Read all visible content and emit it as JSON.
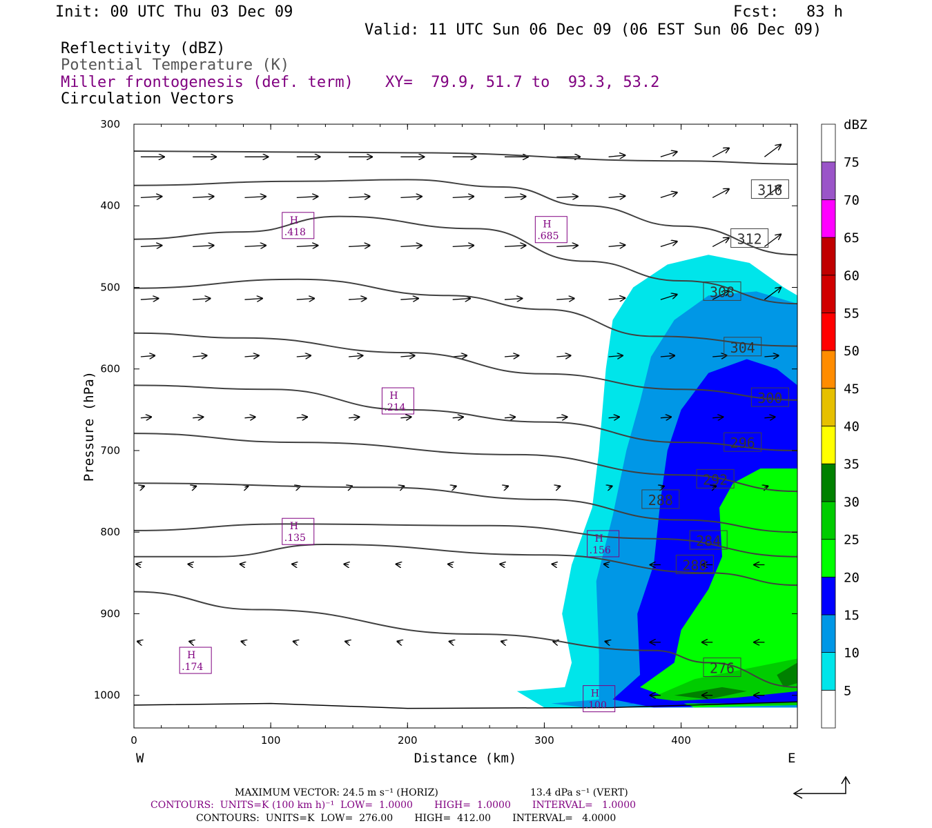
{
  "header": {
    "init": "Init: 00 UTC Thu 03 Dec 09",
    "fcst": "Fcst:   83 h",
    "valid": "Valid: 11 UTC Sun 06 Dec 09 (06 EST Sun 06 Dec 09)"
  },
  "legend": {
    "fields": [
      {
        "label": "Reflectivity (dBZ)",
        "color": "#000000"
      },
      {
        "label": "Potential Temperature (K)",
        "color": "#555555"
      },
      {
        "label": "Miller frontogenesis (def. term)",
        "color": "#800080"
      },
      {
        "label": "Circulation Vectors",
        "color": "#000000"
      }
    ],
    "xy": "XY=  79.9, 51.7 to  93.3, 53.2"
  },
  "footer": {
    "line1a": "MAXIMUM VECTOR:  24.5 m s⁻¹ (HORIZ)",
    "line1b": "13.4 dPa s⁻¹ (VERT)",
    "line2": "CONTOURS:  UNITS=K (100 km h)⁻¹  LOW=  1.0000       HIGH=  1.0000       INTERVAL=   1.0000",
    "line3": "CONTOURS:  UNITS=K  LOW=  276.00       HIGH=  412.00       INTERVAL=   4.0000"
  },
  "chart_data": {
    "type": "cross-section",
    "xlabel": "Distance (km)",
    "ylabel": "Pressure (hPa)",
    "xlim": [
      0,
      485
    ],
    "ylim": [
      1040,
      300
    ],
    "x_ticks": [
      "0",
      "100",
      "200",
      "300",
      "400"
    ],
    "y_ticks": [
      "300",
      "400",
      "500",
      "600",
      "700",
      "800",
      "900",
      "1000"
    ],
    "x_end_labels": {
      "left": "W",
      "right": "E"
    },
    "colorbar": {
      "unit": "dBZ",
      "levels": [
        "5",
        "10",
        "15",
        "20",
        "25",
        "30",
        "35",
        "40",
        "45",
        "50",
        "55",
        "60",
        "65",
        "70",
        "75"
      ],
      "colors": [
        "#ffffff",
        "#00e5ea",
        "#0097e6",
        "#0000ff",
        "#00ff00",
        "#00cc00",
        "#008000",
        "#ffff00",
        "#e6c000",
        "#ff8c00",
        "#ff0000",
        "#d00000",
        "#c00000",
        "#ff00ff",
        "#9a55c8",
        "#ffffff"
      ]
    },
    "theta_contours": [
      {
        "label": "316",
        "line": [
          [
            0,
            333
          ],
          [
            200,
            335
          ],
          [
            400,
            345
          ],
          [
            485,
            349
          ]
        ],
        "lx": 465,
        "ly": 380
      },
      {
        "label": "312",
        "line": [
          [
            0,
            375
          ],
          [
            120,
            370
          ],
          [
            200,
            368
          ],
          [
            270,
            377
          ],
          [
            330,
            400
          ],
          [
            400,
            425
          ],
          [
            485,
            460
          ]
        ],
        "lx": 450,
        "ly": 440
      },
      {
        "label": "308",
        "line": [
          [
            0,
            441
          ],
          [
            80,
            432
          ],
          [
            150,
            413
          ],
          [
            250,
            428
          ],
          [
            330,
            468
          ],
          [
            400,
            492
          ],
          [
            485,
            520
          ]
        ],
        "lx": 430,
        "ly": 505
      },
      {
        "label": "304",
        "line": [
          [
            0,
            501
          ],
          [
            120,
            490
          ],
          [
            230,
            510
          ],
          [
            300,
            527
          ],
          [
            380,
            560
          ],
          [
            485,
            572
          ]
        ],
        "lx": 445,
        "ly": 573
      },
      {
        "label": "300",
        "line": [
          [
            0,
            556
          ],
          [
            80,
            562
          ],
          [
            200,
            580
          ],
          [
            300,
            606
          ],
          [
            400,
            625
          ],
          [
            485,
            638
          ]
        ],
        "lx": 465,
        "ly": 635
      },
      {
        "label": "296",
        "line": [
          [
            0,
            620
          ],
          [
            100,
            625
          ],
          [
            200,
            650
          ],
          [
            300,
            665
          ],
          [
            400,
            690
          ],
          [
            485,
            700
          ]
        ],
        "lx": 445,
        "ly": 690
      },
      {
        "label": "292",
        "line": [
          [
            0,
            679
          ],
          [
            120,
            690
          ],
          [
            280,
            705
          ],
          [
            400,
            730
          ],
          [
            485,
            750
          ]
        ],
        "lx": 425,
        "ly": 735
      },
      {
        "label": "288",
        "line": [
          [
            0,
            740
          ],
          [
            180,
            745
          ],
          [
            300,
            760
          ],
          [
            400,
            785
          ],
          [
            485,
            800
          ]
        ],
        "lx": 385,
        "ly": 760
      },
      {
        "label": "284",
        "line": [
          [
            0,
            798
          ],
          [
            110,
            790
          ],
          [
            260,
            792
          ],
          [
            380,
            808
          ],
          [
            485,
            830
          ]
        ],
        "lx": 420,
        "ly": 810
      },
      {
        "label": "280",
        "line": [
          [
            0,
            830
          ],
          [
            60,
            830
          ],
          [
            140,
            815
          ],
          [
            300,
            828
          ],
          [
            420,
            850
          ],
          [
            485,
            865
          ]
        ],
        "lx": 410,
        "ly": 840
      },
      {
        "label": "276",
        "line": [
          [
            0,
            873
          ],
          [
            90,
            895
          ],
          [
            250,
            925
          ],
          [
            380,
            945
          ],
          [
            420,
            960
          ],
          [
            485,
            990
          ]
        ],
        "lx": 430,
        "ly": 966
      }
    ],
    "frontogenesis_highs": [
      {
        "label": "H",
        "value": ".418",
        "x": 120,
        "p": 425
      },
      {
        "label": "H",
        "value": ".685",
        "x": 305,
        "p": 430
      },
      {
        "label": "H",
        "value": ".214",
        "x": 193,
        "p": 640
      },
      {
        "label": "H",
        "value": ".135",
        "x": 120,
        "p": 800
      },
      {
        "label": "H",
        "value": ".156",
        "x": 343,
        "p": 815
      },
      {
        "label": "H",
        "value": ".174",
        "x": 45,
        "p": 958
      },
      {
        "label": "H",
        "value": ".100",
        "x": 340,
        "p": 1005
      }
    ]
  }
}
